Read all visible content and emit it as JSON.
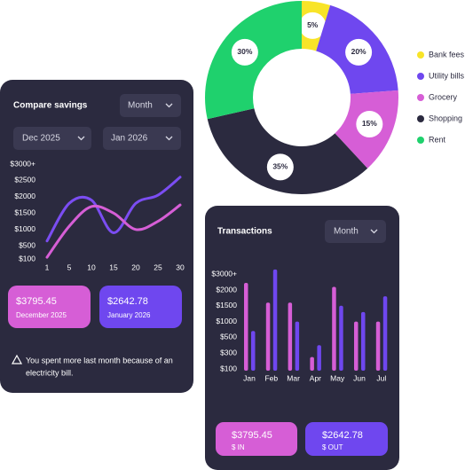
{
  "chart_data": [
    {
      "type": "pie",
      "categories": [
        "Bank fees",
        "Utility bills",
        "Grocery",
        "Shopping",
        "Rent"
      ],
      "values": [
        5,
        20,
        15,
        35,
        30
      ],
      "value_labels": [
        "5%",
        "20%",
        "15%",
        "35%",
        "30%"
      ],
      "colors": [
        "#f8e428",
        "#6f47ef",
        "#d65ed6",
        "#2b2a3f",
        "#1fd16d"
      ],
      "donut": true,
      "legend": "right"
    },
    {
      "type": "line",
      "title": "Compare savings",
      "categories": [
        "1",
        "5",
        "10",
        "15",
        "20",
        "25",
        "30"
      ],
      "series": [
        {
          "color": "#7b4df2",
          "values": [
            650,
            1800,
            1900,
            900,
            1800,
            2050,
            2600
          ]
        },
        {
          "color": "#d65ed6",
          "values": [
            150,
            1100,
            1700,
            1500,
            1000,
            1250,
            1750
          ]
        }
      ],
      "ylim": [
        100,
        3000
      ],
      "yticks": [
        {
          "value": 100,
          "label": "$100"
        },
        {
          "value": 500,
          "label": "$500"
        },
        {
          "value": 1000,
          "label": "$1000"
        },
        {
          "value": 1500,
          "label": "$1500"
        },
        {
          "value": 2000,
          "label": "$2000"
        },
        {
          "value": 2500,
          "label": "$2500"
        },
        {
          "value": 3000,
          "label": "$3000+"
        }
      ]
    },
    {
      "type": "bar",
      "title": "Transactions",
      "categories": [
        "Jan",
        "Feb",
        "Mar",
        "Apr",
        "May",
        "Jun",
        "Jul"
      ],
      "series": [
        {
          "color": "#d65ed6",
          "values": [
            2450,
            1600,
            1600,
            250,
            2200,
            1000,
            1000
          ]
        },
        {
          "color": "#6f47ef",
          "values": [
            700,
            3300,
            1000,
            400,
            1500,
            1300,
            1800
          ]
        }
      ],
      "ylim": [
        100,
        3300
      ],
      "yticks": [
        {
          "value": 100,
          "label": "$100"
        },
        {
          "value": 300,
          "label": "$300"
        },
        {
          "value": 500,
          "label": "$500"
        },
        {
          "value": 1000,
          "label": "$1000"
        },
        {
          "value": 1500,
          "label": "$1500"
        },
        {
          "value": 2000,
          "label": "$2000"
        },
        {
          "value": 3000,
          "label": "$3000+"
        }
      ]
    }
  ],
  "savings_card": {
    "period_select": "Month",
    "from_select": "Dec  2025",
    "to_select": "Jan 2026",
    "tiles": [
      {
        "amount": "$3795.45",
        "caption": "December 2025"
      },
      {
        "amount": "$2642.78",
        "caption": "January 2026"
      }
    ],
    "notice": [
      "You spent more last month because of an",
      "electricity bill."
    ]
  },
  "transactions_card": {
    "period_select": "Month",
    "tiles": [
      {
        "amount": "$3795.45",
        "caption": "$ IN"
      },
      {
        "amount": "$2642.78",
        "caption": "$ OUT"
      }
    ]
  }
}
